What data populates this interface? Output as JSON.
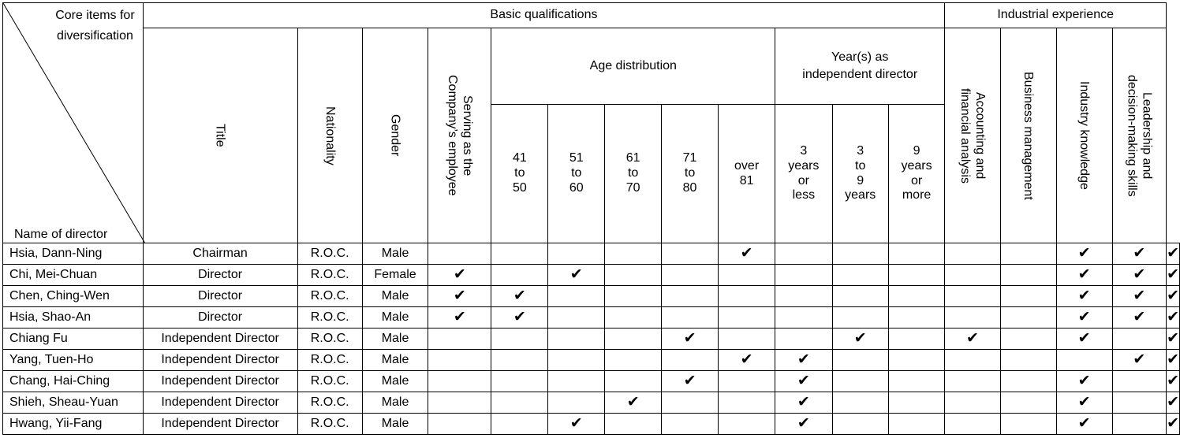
{
  "header": {
    "corner_top": "Core items for\ndiversification",
    "corner_bottom": "Name of director",
    "basic_qualifications": "Basic qualifications",
    "industrial_experience": "Industrial experience",
    "title": "Title",
    "nationality": "Nationality",
    "gender": "Gender",
    "employee": "Serving as the\nCompany’s employee",
    "age_distribution": "Age distribution",
    "ages": [
      "41\nto\n50",
      "51\nto\n60",
      "61\nto\n70",
      "71\nto\n80",
      "over\n81"
    ],
    "years_independent": "Year(s) as\nindependent director",
    "years": [
      "3\nyears\nor\nless",
      "3\nto\n9\nyears",
      "9\nyears\nor\nmore"
    ],
    "experience": [
      "Accounting and\nfinancial analysis",
      "Business management",
      "Industry knowledge",
      "Leadership and\ndecision-making skills"
    ]
  },
  "check_symbol": "✔",
  "directors": [
    {
      "name": "Hsia, Dann-Ning",
      "title": "Chairman",
      "nationality": "R.O.C.",
      "gender": "Male",
      "checks": [
        0,
        0,
        0,
        0,
        0,
        1,
        0,
        0,
        0,
        0,
        0,
        1,
        1,
        1
      ]
    },
    {
      "name": "Chi, Mei-Chuan",
      "title": "Director",
      "nationality": "R.O.C.",
      "gender": "Female",
      "checks": [
        1,
        0,
        1,
        0,
        0,
        0,
        0,
        0,
        0,
        0,
        0,
        1,
        1,
        1
      ]
    },
    {
      "name": "Chen, Ching-Wen",
      "title": "Director",
      "nationality": "R.O.C.",
      "gender": "Male",
      "checks": [
        1,
        1,
        0,
        0,
        0,
        0,
        0,
        0,
        0,
        0,
        0,
        1,
        1,
        1
      ]
    },
    {
      "name": "Hsia, Shao-An",
      "title": "Director",
      "nationality": "R.O.C.",
      "gender": "Male",
      "checks": [
        1,
        1,
        0,
        0,
        0,
        0,
        0,
        0,
        0,
        0,
        0,
        1,
        1,
        1
      ]
    },
    {
      "name": "Chiang Fu",
      "title": "Independent Director",
      "nationality": "R.O.C.",
      "gender": "Male",
      "checks": [
        0,
        0,
        0,
        0,
        1,
        0,
        0,
        1,
        0,
        1,
        0,
        1,
        0,
        1
      ]
    },
    {
      "name": "Yang, Tuen-Ho",
      "title": "Independent Director",
      "nationality": "R.O.C.",
      "gender": "Male",
      "checks": [
        0,
        0,
        0,
        0,
        0,
        1,
        1,
        0,
        0,
        0,
        0,
        0,
        1,
        1
      ]
    },
    {
      "name": "Chang, Hai-Ching",
      "title": "Independent Director",
      "nationality": "R.O.C.",
      "gender": "Male",
      "checks": [
        0,
        0,
        0,
        0,
        1,
        0,
        1,
        0,
        0,
        0,
        0,
        1,
        0,
        1
      ]
    },
    {
      "name": "Shieh, Sheau-Yuan",
      "title": "Independent Director",
      "nationality": "R.O.C.",
      "gender": "Male",
      "checks": [
        0,
        0,
        0,
        1,
        0,
        0,
        1,
        0,
        0,
        0,
        0,
        1,
        0,
        1
      ]
    },
    {
      "name": "Hwang, Yii-Fang",
      "title": "Independent Director",
      "nationality": "R.O.C.",
      "gender": "Male",
      "checks": [
        0,
        0,
        1,
        0,
        0,
        0,
        1,
        0,
        0,
        0,
        0,
        1,
        0,
        1
      ]
    }
  ]
}
